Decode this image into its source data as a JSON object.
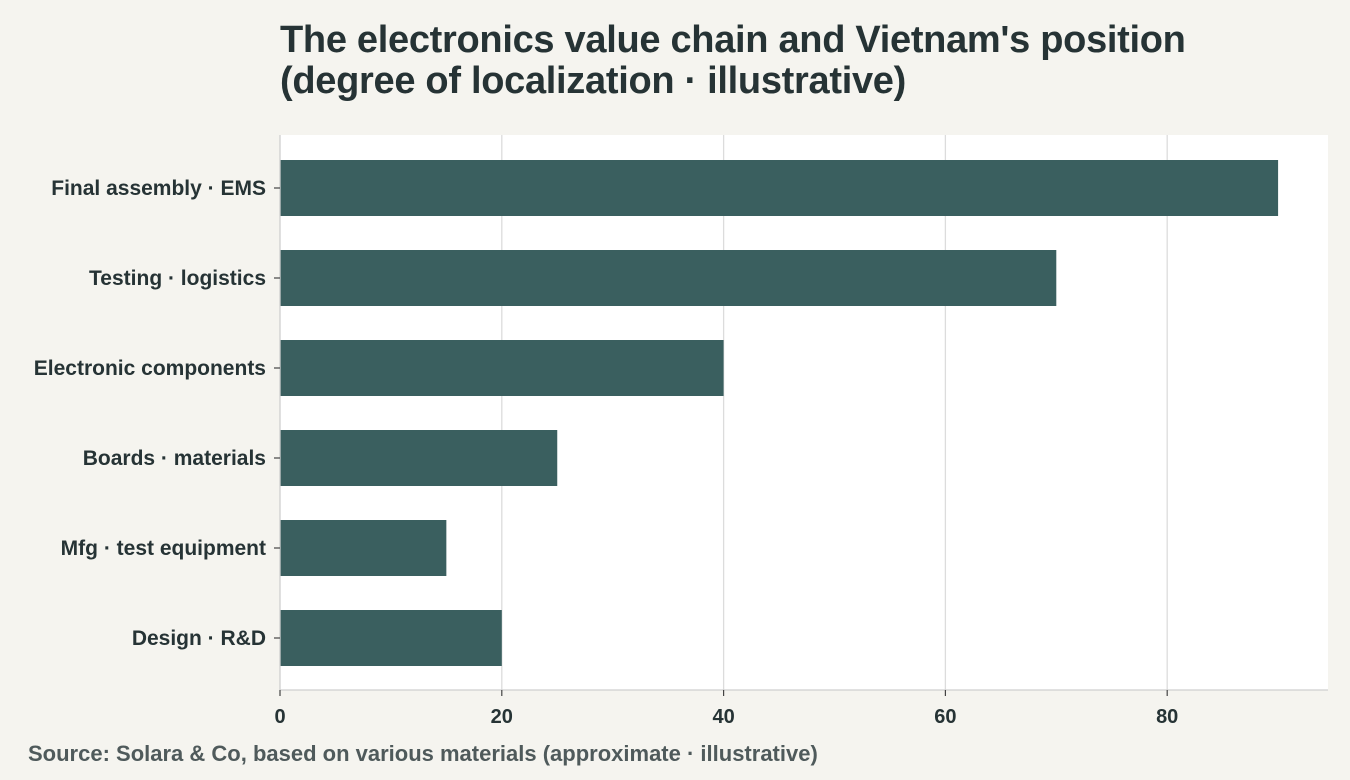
{
  "chart_data": {
    "type": "bar",
    "orientation": "horizontal",
    "title_lines": [
      "The electronics value chain and Vietnam's position",
      "(degree of localization · illustrative)"
    ],
    "categories": [
      "Final assembly · EMS",
      "Testing · logistics",
      "Electronic components",
      "Boards · materials",
      "Mfg · test equipment",
      "Design · R&D"
    ],
    "values": [
      90,
      70,
      40,
      25,
      15,
      20
    ],
    "xlim": [
      0,
      94.5
    ],
    "xticks": [
      0,
      20,
      40,
      60,
      80
    ],
    "xtick_labels": [
      "0",
      "20",
      "40",
      "60",
      "80"
    ],
    "grid": "vertical",
    "bar_color": "#3a5f5f",
    "plot_background": "#ffffff",
    "page_background": "#f5f4ef",
    "xlabel": "",
    "ylabel": ""
  },
  "source_note": "Source: Solara & Co, based on various materials (approximate · illustrative)"
}
